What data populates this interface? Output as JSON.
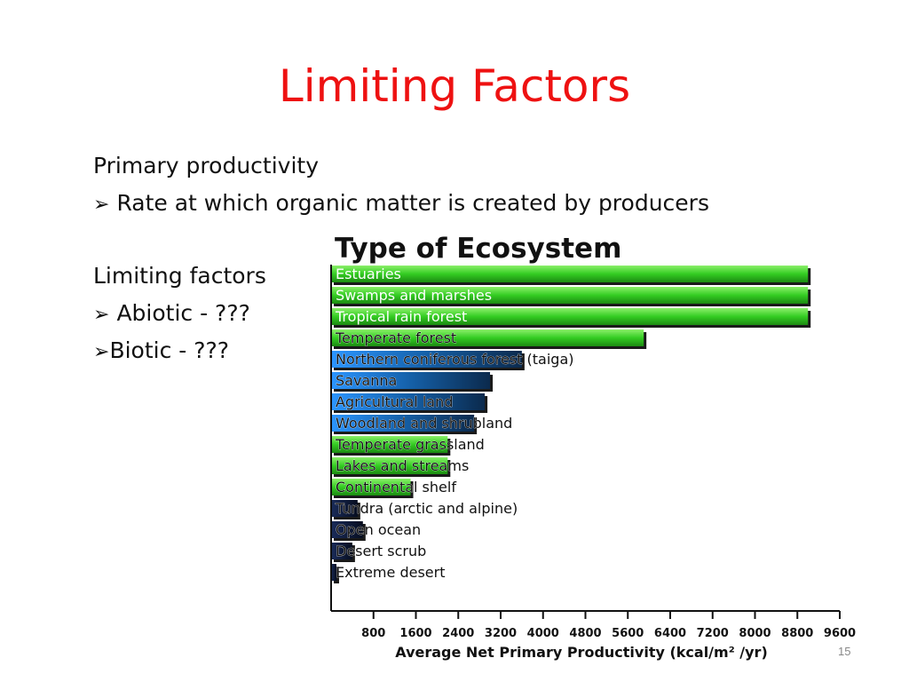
{
  "slide": {
    "title": "Limiting Factors",
    "line1": "Primary productivity",
    "bullet1": "Rate at which organic matter is created by producers",
    "line2": "Limiting factors",
    "bullet2": "Abiotic - ???",
    "bullet3": "Biotic - ???",
    "bullet_icon": "arrow-bullet-icon",
    "slide_number": "15",
    "title_color": "#ee1111"
  },
  "chart_data": {
    "type": "bar",
    "orientation": "horizontal",
    "title": "Type of Ecosystem",
    "xlabel": "Average Net Primary Productivity (kcal/m² /yr)",
    "ylabel": "",
    "categories": [
      "Estuaries",
      "Swamps and marshes",
      "Tropical rain forest",
      "Temperate forest",
      "Northern coniferous forest (taiga)",
      "Savanna",
      "Agricultural land",
      "Woodland and shrubland",
      "Temperate grassland",
      "Lakes and streams",
      "Continental shelf",
      "Tundra (arctic and alpine)",
      "Open ocean",
      "Desert scrub",
      "Extreme desert"
    ],
    "values": [
      9000,
      9000,
      9000,
      5900,
      3600,
      3000,
      2900,
      2700,
      2200,
      2200,
      1500,
      500,
      600,
      400,
      100
    ],
    "colors": [
      "#33cc22",
      "#33cc22",
      "#33cc22",
      "#33cc22",
      "#1e88e5",
      "#1e88e5",
      "#1e88e5",
      "#1e88e5",
      "#33cc22",
      "#33cc22",
      "#33cc22",
      "#0d1a3a",
      "#0d1a3a",
      "#0d1a3a",
      "#0d1a3a"
    ],
    "xticks": [
      800,
      1600,
      2400,
      3200,
      4000,
      4800,
      5600,
      6400,
      7200,
      8000,
      8800,
      9600
    ],
    "xlim": [
      0,
      9600
    ],
    "grid": false,
    "legend": "none"
  }
}
